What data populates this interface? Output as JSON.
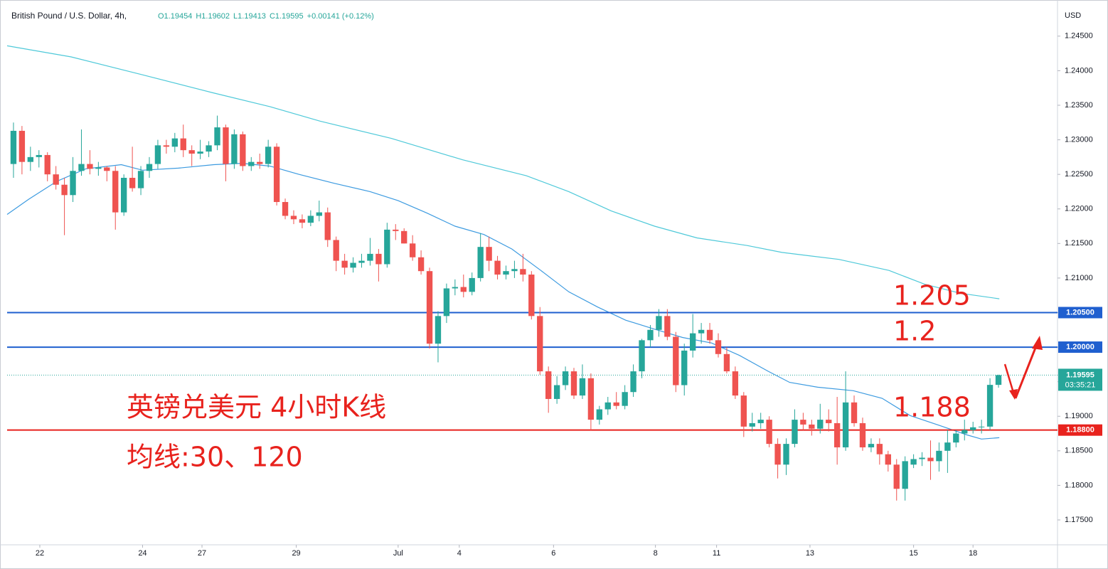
{
  "chart_data": {
    "type": "candlestick",
    "title": "British Pound / U.S. Dollar, 4h,",
    "ohlc_header": [
      "O1.19454",
      "H1.19602",
      "L1.19413",
      "C1.19595",
      "+0.00141 (+0.12%)"
    ],
    "y_axis_label": "USD",
    "up_color": "#26a69a",
    "down_color": "#ef5350",
    "open": [
      1.2265,
      1.2313,
      1.2268,
      1.2275,
      1.2278,
      1.225,
      1.2235,
      1.222,
      1.2255,
      1.2265,
      1.2258,
      1.226,
      1.2255,
      1.2195,
      1.2245,
      1.223,
      1.2255,
      1.2265,
      1.2292,
      1.229,
      1.2302,
      1.2285,
      1.228,
      1.2283,
      1.2292,
      1.2318,
      1.2265,
      1.2308,
      1.2262,
      1.2268,
      1.2265,
      1.229,
      1.221,
      1.219,
      1.2185,
      1.218,
      1.219,
      1.2195,
      1.2155,
      1.2125,
      1.2115,
      1.2122,
      1.2125,
      1.2135,
      1.212,
      1.217,
      1.2168,
      1.215,
      1.213,
      1.211,
      1.2005,
      1.2045,
      1.2085,
      1.2087,
      1.208,
      1.21,
      1.2145,
      1.2125,
      1.2105,
      1.211,
      1.2113,
      1.2105,
      1.2045,
      1.1965,
      1.1925,
      1.1945,
      1.1965,
      1.193,
      1.1955,
      1.1895,
      1.191,
      1.192,
      1.1915,
      1.1935,
      1.1965,
      1.201,
      1.2025,
      1.2045,
      1.2015,
      1.1945,
      1.1995,
      1.202,
      1.2025,
      1.201,
      1.199,
      1.1965,
      1.193,
      1.1885,
      1.189,
      1.1895,
      1.186,
      1.183,
      1.186,
      1.1895,
      1.1888,
      1.1882,
      1.1895,
      1.189,
      1.1855,
      1.192,
      1.189,
      1.1855,
      1.186,
      1.1845,
      1.183,
      1.1795,
      1.183,
      1.1838,
      1.184,
      1.1835,
      1.185,
      1.1862,
      1.1875,
      1.188,
      1.1884,
      1.1885,
      1.19454
    ],
    "high": [
      1.2325,
      1.232,
      1.229,
      1.2285,
      1.2282,
      1.2262,
      1.2245,
      1.2275,
      1.2315,
      1.2285,
      1.2268,
      1.2262,
      1.2262,
      1.225,
      1.229,
      1.2262,
      1.2275,
      1.23,
      1.23,
      1.231,
      1.2322,
      1.2292,
      1.23,
      1.2298,
      1.2335,
      1.2322,
      1.2315,
      1.2312,
      1.2275,
      1.228,
      1.23,
      1.2295,
      1.2215,
      1.2198,
      1.2192,
      1.2198,
      1.2212,
      1.2202,
      1.216,
      1.2135,
      1.213,
      1.2135,
      1.2158,
      1.2142,
      1.218,
      1.2178,
      1.2172,
      1.2162,
      1.214,
      1.2115,
      1.2052,
      1.2092,
      1.2098,
      1.2105,
      1.2108,
      1.2165,
      1.216,
      1.2132,
      1.2118,
      1.2125,
      1.2135,
      1.211,
      1.2058,
      1.1972,
      1.1958,
      1.1972,
      1.197,
      1.1975,
      1.1962,
      1.1915,
      1.1928,
      1.1935,
      1.1945,
      1.1975,
      1.2012,
      1.2032,
      1.2055,
      1.2055,
      1.2022,
      1.2005,
      1.2048,
      1.2035,
      1.2035,
      1.202,
      1.2,
      1.1972,
      1.1935,
      1.1905,
      1.1905,
      1.19,
      1.1868,
      1.1868,
      1.191,
      1.1905,
      1.1895,
      1.1918,
      1.191,
      1.1928,
      1.1965,
      1.193,
      1.1898,
      1.1868,
      1.1868,
      1.185,
      1.1838,
      1.1842,
      1.1845,
      1.1848,
      1.1865,
      1.1862,
      1.188,
      1.188,
      1.1895,
      1.1892,
      1.1895,
      1.1955,
      1.19602
    ],
    "low": [
      1.2245,
      1.225,
      1.2255,
      1.226,
      1.224,
      1.2228,
      1.2162,
      1.221,
      1.2248,
      1.225,
      1.2248,
      1.224,
      1.217,
      1.219,
      1.2225,
      1.222,
      1.2245,
      1.2258,
      1.228,
      1.2282,
      1.2275,
      1.2262,
      1.2272,
      1.2275,
      1.2285,
      1.224,
      1.2258,
      1.2255,
      1.2255,
      1.2258,
      1.226,
      1.2205,
      1.2185,
      1.2178,
      1.2172,
      1.2175,
      1.2182,
      1.2145,
      1.211,
      1.2105,
      1.2108,
      1.2115,
      1.2118,
      1.2095,
      1.2115,
      1.2155,
      1.215,
      1.2125,
      1.2105,
      1.1998,
      1.1978,
      1.2035,
      1.2075,
      1.2072,
      1.2075,
      1.2095,
      1.211,
      1.2098,
      1.2098,
      1.21,
      1.2095,
      1.204,
      1.196,
      1.1905,
      1.1918,
      1.1938,
      1.1925,
      1.1925,
      1.188,
      1.1888,
      1.1902,
      1.191,
      1.191,
      1.1928,
      1.1955,
      1.2,
      1.2015,
      1.201,
      1.1935,
      1.193,
      1.1985,
      1.2005,
      1.2005,
      1.1985,
      1.1962,
      1.1925,
      1.187,
      1.1878,
      1.1882,
      1.1855,
      1.181,
      1.1815,
      1.1855,
      1.188,
      1.1872,
      1.1875,
      1.1878,
      1.183,
      1.185,
      1.1885,
      1.185,
      1.1848,
      1.183,
      1.182,
      1.1778,
      1.1778,
      1.1825,
      1.1828,
      1.1808,
      1.182,
      1.1818,
      1.1855,
      1.1865,
      1.1875,
      1.1875,
      1.188,
      1.19413
    ],
    "close": [
      1.2313,
      1.2268,
      1.2275,
      1.2278,
      1.225,
      1.2235,
      1.222,
      1.2255,
      1.2265,
      1.2258,
      1.226,
      1.2255,
      1.2195,
      1.2245,
      1.223,
      1.2255,
      1.2265,
      1.2292,
      1.229,
      1.2302,
      1.2285,
      1.228,
      1.2283,
      1.2292,
      1.2318,
      1.2265,
      1.2308,
      1.2262,
      1.2268,
      1.2265,
      1.229,
      1.221,
      1.219,
      1.2185,
      1.218,
      1.219,
      1.2195,
      1.2155,
      1.2125,
      1.2115,
      1.2122,
      1.2125,
      1.2135,
      1.212,
      1.217,
      1.2168,
      1.215,
      1.213,
      1.211,
      1.2005,
      1.2045,
      1.2085,
      1.2087,
      1.208,
      1.21,
      1.2145,
      1.2125,
      1.2105,
      1.211,
      1.2113,
      1.2105,
      1.2045,
      1.1965,
      1.1925,
      1.1945,
      1.1965,
      1.193,
      1.1955,
      1.1895,
      1.191,
      1.192,
      1.1915,
      1.1935,
      1.1965,
      1.201,
      1.2025,
      1.2045,
      1.2015,
      1.1945,
      1.1995,
      1.202,
      1.2025,
      1.201,
      1.199,
      1.1965,
      1.193,
      1.1885,
      1.189,
      1.1895,
      1.186,
      1.183,
      1.186,
      1.1895,
      1.1888,
      1.1882,
      1.1895,
      1.189,
      1.1855,
      1.192,
      1.189,
      1.1855,
      1.186,
      1.1845,
      1.183,
      1.1795,
      1.1835,
      1.1838,
      1.184,
      1.1835,
      1.185,
      1.1862,
      1.1875,
      1.188,
      1.1884,
      1.1885,
      1.19454,
      1.19595
    ],
    "moving_averages": [
      {
        "color": "#3d9be0",
        "x": [
          -0.75,
          1.8,
          5.1,
          8.5,
          12.7,
          15.2,
          19.4,
          23.6,
          26.9,
          30.2,
          33.6,
          37.8,
          42.0,
          45.3,
          48.7,
          52.0,
          55.4,
          58.7,
          62.1,
          65.4,
          68.8,
          72.1,
          75.5,
          78.8,
          82.2,
          85.5,
          88.9,
          91.4,
          94.7,
          98.9,
          102.3,
          105.6,
          109.0,
          112.3,
          114.0,
          116.1
        ],
        "values": [
          1.2192,
          1.2214,
          1.224,
          1.2258,
          1.2264,
          1.2256,
          1.2259,
          1.2264,
          1.2266,
          1.2262,
          1.225,
          1.2237,
          1.2225,
          1.2212,
          1.2194,
          1.2175,
          1.2163,
          1.2142,
          1.2111,
          1.208,
          1.2058,
          1.2039,
          1.2026,
          1.2014,
          1.2006,
          1.1988,
          1.1965,
          1.1949,
          1.1942,
          1.1937,
          1.1926,
          1.1901,
          1.1887,
          1.1873,
          1.1867,
          1.1869
        ]
      },
      {
        "color": "#4fc9d9",
        "x": [
          -0.75,
          6.8,
          15.2,
          23.5,
          30.2,
          36.1,
          44.5,
          52.9,
          60.4,
          65.4,
          70.4,
          75.5,
          80.5,
          86.4,
          90.5,
          97.2,
          103.1,
          107.3,
          111.5,
          116.1
        ],
        "values": [
          1.2436,
          1.242,
          1.2394,
          1.2368,
          1.2348,
          1.2327,
          1.2302,
          1.2271,
          1.2248,
          1.2225,
          1.2197,
          1.2175,
          1.2158,
          1.2147,
          1.2137,
          1.2127,
          1.2111,
          1.2091,
          1.2078,
          1.207
        ]
      }
    ],
    "levels": [
      {
        "value": 1.205,
        "label": "1.20500",
        "color": "#1f5fcf"
      },
      {
        "value": 1.2,
        "label": "1.20000",
        "color": "#1f5fcf"
      },
      {
        "value": 1.188,
        "label": "1.18800",
        "color": "#e8221d"
      }
    ],
    "last_price": {
      "value": 1.19595,
      "label": "1.19595",
      "countdown": "03:35:21"
    },
    "annotations": [
      "1.205",
      "1.2",
      "1.188",
      "英镑兑美元 4小时K线",
      "均线:30、120"
    ],
    "xlim": [
      -0.75,
      122.95
    ],
    "xticks": [
      {
        "value": 3.1,
        "label": "22"
      },
      {
        "value": 15.2,
        "label": "24"
      },
      {
        "value": 22.2,
        "label": "27"
      },
      {
        "value": 33.3,
        "label": "29"
      },
      {
        "value": 45.3,
        "label": "Jul"
      },
      {
        "value": 52.5,
        "label": "4"
      },
      {
        "value": 63.6,
        "label": "6"
      },
      {
        "value": 75.6,
        "label": "8"
      },
      {
        "value": 82.8,
        "label": "11"
      },
      {
        "value": 93.8,
        "label": "13"
      },
      {
        "value": 106.0,
        "label": "15"
      },
      {
        "value": 113.0,
        "label": "18"
      }
    ],
    "ylim": [
      1.1715,
      1.2492
    ],
    "yticks": [
      {
        "value": 1.175,
        "label": "1.17500"
      },
      {
        "value": 1.18,
        "label": "1.18000"
      },
      {
        "value": 1.185,
        "label": "1.18500"
      },
      {
        "value": 1.19,
        "label": "1.19000"
      },
      {
        "value": 1.195,
        "label": "1.19500"
      },
      {
        "value": 1.2,
        "label": "1.20000"
      },
      {
        "value": 1.205,
        "label": "1.20500"
      },
      {
        "value": 1.21,
        "label": "1.21000"
      },
      {
        "value": 1.215,
        "label": "1.21500"
      },
      {
        "value": 1.22,
        "label": "1.22000"
      },
      {
        "value": 1.225,
        "label": "1.22500"
      },
      {
        "value": 1.23,
        "label": "1.23000"
      },
      {
        "value": 1.235,
        "label": "1.23500"
      },
      {
        "value": 1.24,
        "label": "1.24000"
      },
      {
        "value": 1.245,
        "label": "1.24500"
      }
    ],
    "grid": false
  }
}
